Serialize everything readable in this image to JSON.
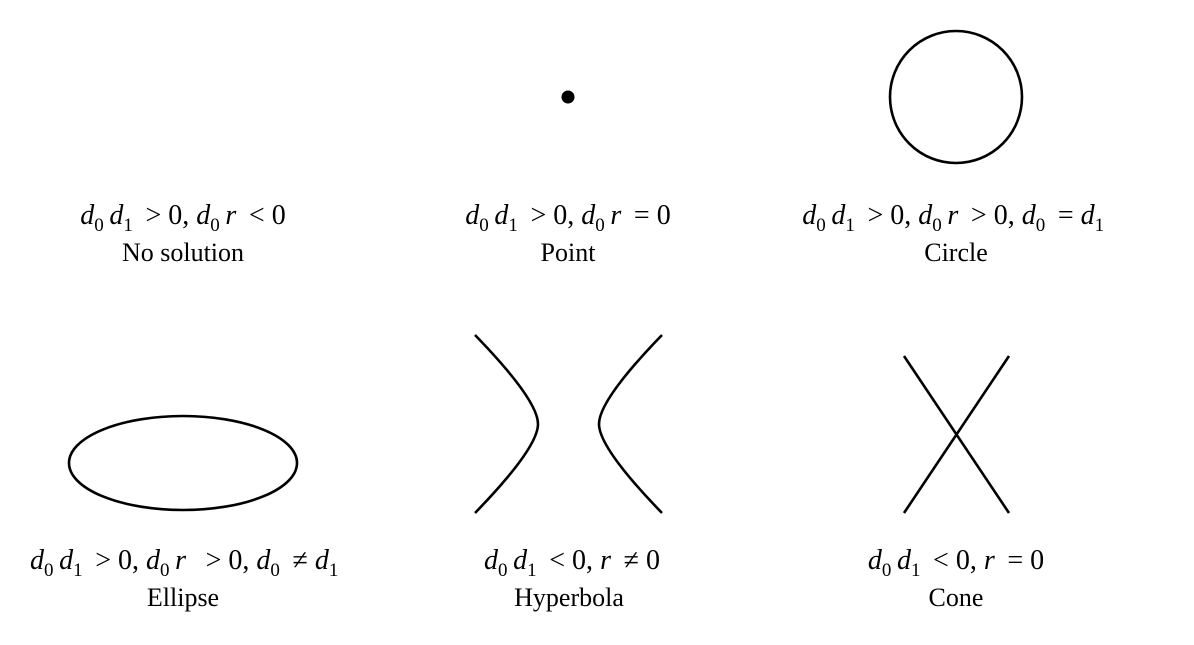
{
  "cases": [
    {
      "name": "No solution",
      "condition": {
        "parts": [
          {
            "v": "d",
            "s": "0"
          },
          {
            "v": "d",
            "s": "1"
          },
          {
            "o": " > 0, "
          },
          {
            "v": "d",
            "s": "0"
          },
          {
            "v": "r"
          },
          {
            "o": " < 0"
          }
        ]
      }
    },
    {
      "name": "Point",
      "condition": {
        "parts": [
          {
            "v": "d",
            "s": "0"
          },
          {
            "v": "d",
            "s": "1"
          },
          {
            "o": " > 0, "
          },
          {
            "v": "d",
            "s": "0"
          },
          {
            "v": "r"
          },
          {
            "o": " = 0"
          }
        ]
      }
    },
    {
      "name": "Circle",
      "condition": {
        "parts": [
          {
            "v": "d",
            "s": "0"
          },
          {
            "v": "d",
            "s": "1"
          },
          {
            "o": " > 0, "
          },
          {
            "v": "d",
            "s": "0"
          },
          {
            "v": "r"
          },
          {
            "o": " > 0, "
          },
          {
            "v": "d",
            "s": "0"
          },
          {
            "o": " = "
          },
          {
            "v": "d",
            "s": "1"
          }
        ]
      }
    },
    {
      "name": "Ellipse",
      "condition": {
        "parts": [
          {
            "v": "d",
            "s": "0"
          },
          {
            "v": "d",
            "s": "1"
          },
          {
            "o": " > 0, "
          },
          {
            "v": "d",
            "s": "0"
          },
          {
            "v": "r"
          },
          {
            "o": "  > 0, "
          },
          {
            "v": "d",
            "s": "0"
          },
          {
            "o": " ≠ "
          },
          {
            "v": "d",
            "s": "1"
          }
        ]
      }
    },
    {
      "name": "Hyperbola",
      "condition": {
        "parts": [
          {
            "v": "d",
            "s": "0"
          },
          {
            "v": "d",
            "s": "1"
          },
          {
            "o": " < 0, "
          },
          {
            "v": "r"
          },
          {
            "o": " ≠ 0"
          }
        ]
      }
    },
    {
      "name": "Cone",
      "condition": {
        "parts": [
          {
            "v": "d",
            "s": "0"
          },
          {
            "v": "d",
            "s": "1"
          },
          {
            "o": " < 0, "
          },
          {
            "v": "r"
          },
          {
            "o": " = 0"
          }
        ]
      }
    }
  ],
  "style": {
    "stroke": "#000000",
    "background": "#ffffff"
  }
}
